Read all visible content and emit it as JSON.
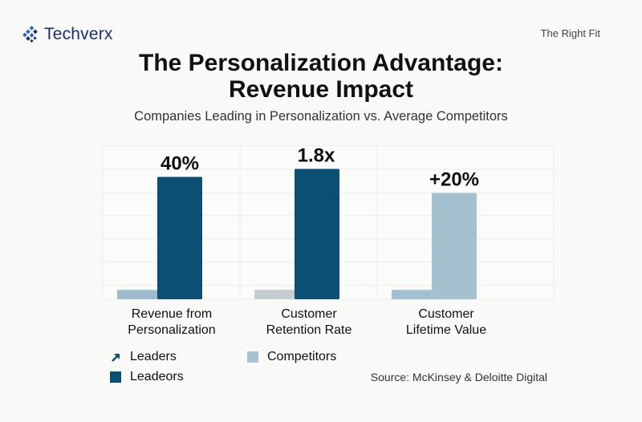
{
  "header": {
    "brand": "Techverx",
    "brand_icon": "diamond-grid-logo-icon",
    "tagline": "The Right Fit",
    "brand_color": "#1a2f6b",
    "accent_color": "#2a5fd6"
  },
  "chart_data": {
    "type": "bar",
    "title": "The Personalization Advantage: Revenue Impact",
    "title_lines": [
      "The Personalization Advantage:",
      "Revenue Impact"
    ],
    "subtitle": "Companies Leading in Personalization vs. Average Competitors",
    "categories": [
      {
        "lines": [
          "Revenue from",
          "Personalization"
        ]
      },
      {
        "lines": [
          "Customer",
          "Retention Rate"
        ]
      },
      {
        "lines": [
          "Customer",
          "Lifetime Value"
        ]
      }
    ],
    "series": [
      {
        "name": "Competitors",
        "values": [
          7,
          7,
          7
        ],
        "colors": [
          "#9dbcd0",
          "#c5cdd0",
          "#a3c0d2"
        ]
      },
      {
        "name": "Leaders",
        "values": [
          91,
          97,
          79
        ],
        "colors": [
          "#0b4f75",
          "#0b4f75",
          "#a5c0cf"
        ],
        "data_labels": [
          "40%",
          "1.8x",
          "+20%"
        ]
      }
    ],
    "ylim": [
      0,
      114
    ],
    "gridlines": 6,
    "grid": true,
    "xlabel": "",
    "ylabel": "",
    "legend": {
      "placement": "bottom-left",
      "items": [
        {
          "label": "Leaders",
          "icon": "arrow-up-right-icon",
          "color": "#0b4f75"
        },
        {
          "label": "Competitors",
          "icon": "square",
          "color": "#a9c3d2"
        },
        {
          "label": "Leadeors",
          "icon": "square",
          "color": "#0b4f75"
        }
      ]
    },
    "source": "Source: McKinsey & Deloitte Digital"
  }
}
